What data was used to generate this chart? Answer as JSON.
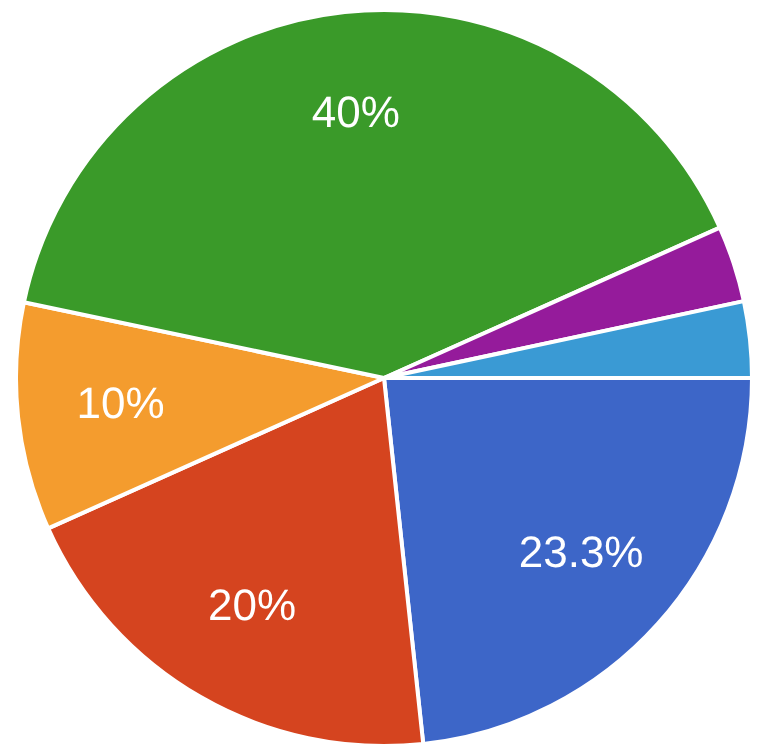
{
  "chart_data": {
    "type": "pie",
    "categories": [
      null,
      null,
      null,
      null,
      null,
      null
    ],
    "values": [
      23.3,
      20,
      10,
      40,
      3.35,
      3.35
    ],
    "colors": [
      "#3d66c8",
      "#d5441f",
      "#f49c2e",
      "#3a9a29",
      "#951b9b",
      "#3a9ad4"
    ],
    "value_labels": [
      "23.3%",
      "20%",
      "10%",
      "40%",
      null,
      null
    ],
    "legend": false
  }
}
